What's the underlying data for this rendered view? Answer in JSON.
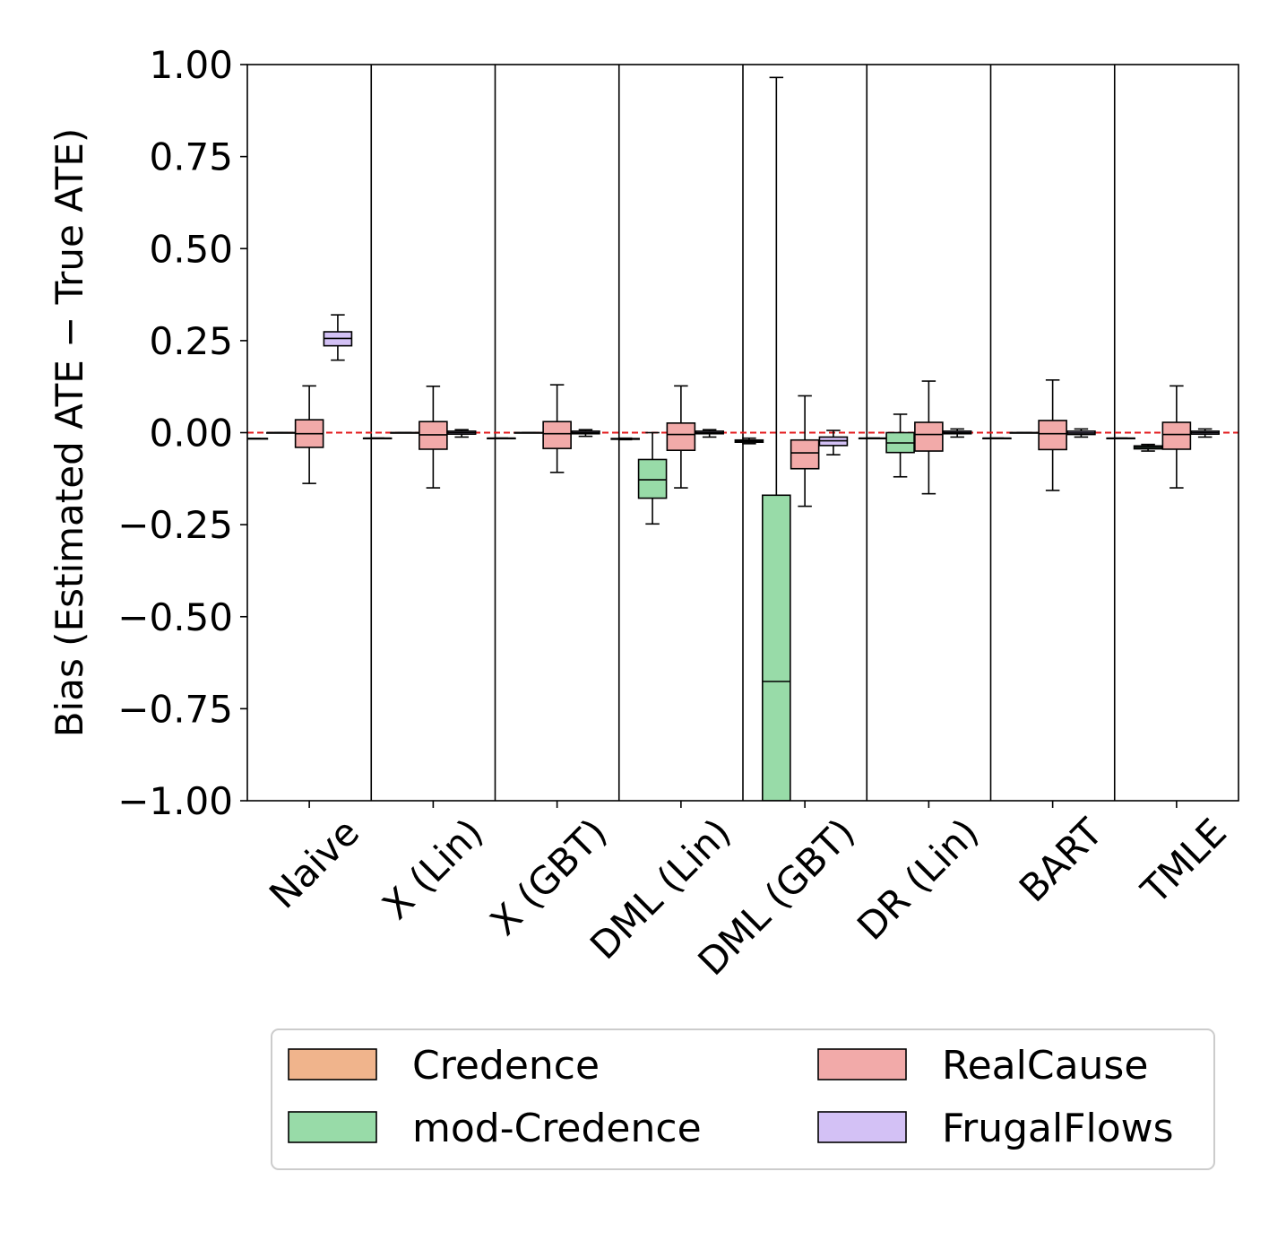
{
  "chart_data": {
    "type": "boxplot",
    "ylabel": "Bias (Estimated ATE − True ATE)",
    "ylim": [
      -1.0,
      1.0
    ],
    "yticks": [
      1.0,
      0.75,
      0.5,
      0.25,
      0.0,
      -0.25,
      -0.5,
      -0.75,
      -1.0
    ],
    "ytick_labels": [
      "1.00",
      "0.75",
      "0.50",
      "0.25",
      "0.00",
      "−0.25",
      "−0.50",
      "−0.75",
      "−1.00"
    ],
    "categories": [
      "Naive",
      "X (Lin)",
      "X (GBT)",
      "DML (Lin)",
      "DML (GBT)",
      "DR (Lin)",
      "BART",
      "TMLE"
    ],
    "reference_line": {
      "y": 0.0,
      "color": "#e31a1c",
      "style": "dashed"
    },
    "legend": {
      "position": "bottom",
      "columns": 2
    },
    "series": [
      {
        "name": "Credence",
        "color": "#f0b48c",
        "boxes": [
          {
            "q1": -0.016,
            "median": -0.016,
            "q3": -0.016,
            "wlo": -0.016,
            "whi": -0.016
          },
          {
            "q1": -0.015,
            "median": -0.015,
            "q3": -0.015,
            "wlo": -0.015,
            "whi": -0.015
          },
          {
            "q1": -0.015,
            "median": -0.015,
            "q3": -0.015,
            "wlo": -0.015,
            "whi": -0.015
          },
          {
            "q1": -0.018,
            "median": -0.017,
            "q3": -0.016,
            "wlo": -0.019,
            "whi": -0.015
          },
          {
            "q1": -0.026,
            "median": -0.023,
            "q3": -0.02,
            "wlo": -0.03,
            "whi": -0.015
          },
          {
            "q1": -0.015,
            "median": -0.015,
            "q3": -0.015,
            "wlo": -0.015,
            "whi": -0.015
          },
          {
            "q1": -0.015,
            "median": -0.015,
            "q3": -0.015,
            "wlo": -0.015,
            "whi": -0.015
          },
          {
            "q1": -0.015,
            "median": -0.015,
            "q3": -0.015,
            "wlo": -0.015,
            "whi": -0.015
          }
        ]
      },
      {
        "name": "mod-Credence",
        "color": "#98dba8",
        "boxes": [
          {
            "q1": 0.0,
            "median": 0.0,
            "q3": 0.0,
            "wlo": 0.0,
            "whi": 0.0
          },
          {
            "q1": 0.0,
            "median": 0.0,
            "q3": 0.0,
            "wlo": 0.0,
            "whi": 0.0
          },
          {
            "q1": 0.0,
            "median": 0.0,
            "q3": 0.0,
            "wlo": 0.0,
            "whi": 0.0
          },
          {
            "q1": -0.178,
            "median": -0.128,
            "q3": -0.073,
            "wlo": -0.248,
            "whi": 0.0
          },
          {
            "q1": -1.0,
            "median": -0.676,
            "q3": -0.17,
            "wlo": -1.0,
            "whi": 0.965
          },
          {
            "q1": -0.054,
            "median": -0.028,
            "q3": 0.0,
            "wlo": -0.12,
            "whi": 0.05
          },
          {
            "q1": 0.0,
            "median": 0.0,
            "q3": 0.0,
            "wlo": 0.0,
            "whi": 0.0
          },
          {
            "q1": -0.044,
            "median": -0.04,
            "q3": -0.036,
            "wlo": -0.05,
            "whi": -0.032
          }
        ]
      },
      {
        "name": "RealCause",
        "color": "#f2aaa9",
        "boxes": [
          {
            "q1": -0.04,
            "median": -0.003,
            "q3": 0.035,
            "wlo": -0.138,
            "whi": 0.127
          },
          {
            "q1": -0.045,
            "median": -0.006,
            "q3": 0.03,
            "wlo": -0.15,
            "whi": 0.126
          },
          {
            "q1": -0.043,
            "median": -0.003,
            "q3": 0.03,
            "wlo": -0.108,
            "whi": 0.13
          },
          {
            "q1": -0.048,
            "median": -0.005,
            "q3": 0.026,
            "wlo": -0.15,
            "whi": 0.127
          },
          {
            "q1": -0.098,
            "median": -0.055,
            "q3": -0.02,
            "wlo": -0.2,
            "whi": 0.1
          },
          {
            "q1": -0.05,
            "median": -0.005,
            "q3": 0.028,
            "wlo": -0.166,
            "whi": 0.14
          },
          {
            "q1": -0.046,
            "median": -0.003,
            "q3": 0.033,
            "wlo": -0.157,
            "whi": 0.143
          },
          {
            "q1": -0.045,
            "median": -0.005,
            "q3": 0.028,
            "wlo": -0.15,
            "whi": 0.127
          }
        ]
      },
      {
        "name": "FrugalFlows",
        "color": "#d3c1f5",
        "boxes": [
          {
            "q1": 0.236,
            "median": 0.256,
            "q3": 0.274,
            "wlo": 0.197,
            "whi": 0.32
          },
          {
            "q1": -0.004,
            "median": 0.0,
            "q3": 0.004,
            "wlo": -0.012,
            "whi": 0.008
          },
          {
            "q1": -0.003,
            "median": 0.0,
            "q3": 0.004,
            "wlo": -0.01,
            "whi": 0.008
          },
          {
            "q1": -0.003,
            "median": 0.0,
            "q3": 0.004,
            "wlo": -0.012,
            "whi": 0.008
          },
          {
            "q1": -0.035,
            "median": -0.022,
            "q3": -0.012,
            "wlo": -0.06,
            "whi": 0.006
          },
          {
            "q1": -0.003,
            "median": 0.0,
            "q3": 0.004,
            "wlo": -0.012,
            "whi": 0.01
          },
          {
            "q1": -0.005,
            "median": -0.001,
            "q3": 0.004,
            "wlo": -0.012,
            "whi": 0.01
          },
          {
            "q1": -0.004,
            "median": 0.0,
            "q3": 0.004,
            "wlo": -0.012,
            "whi": 0.01
          }
        ]
      }
    ]
  }
}
